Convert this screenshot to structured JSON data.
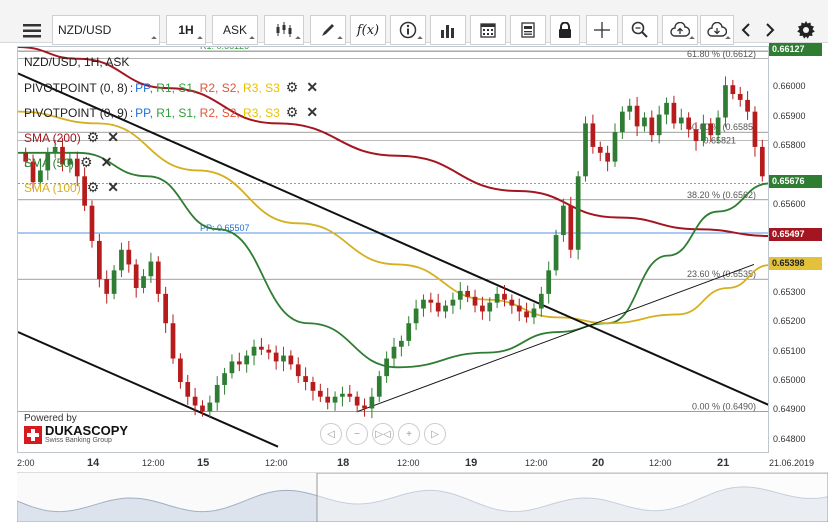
{
  "toolbar": {
    "menu_icon": "hamburger-icon",
    "symbol": "NZD/USD",
    "timeframe": "1H",
    "side": "ASK",
    "fx_label": "f(x)"
  },
  "chart_header": {
    "instrument": "NZD/USD, 1H, ASK"
  },
  "indicators": [
    {
      "name": "PIVOTPOINT (0, 8)",
      "levels": [
        "PP",
        "R1",
        "S1",
        "R2",
        "S2",
        "R3",
        "S3"
      ]
    },
    {
      "name": "PIVOTPOINT (0, 9)",
      "levels": [
        "PP",
        "R1",
        "S1",
        "R2",
        "S2",
        "R3",
        "S3"
      ]
    },
    {
      "name": "SMA (200)"
    },
    {
      "name": "SMA (50)"
    },
    {
      "name": "SMA (100)"
    }
  ],
  "sep": " : ",
  "annotations": {
    "r1": "R1: 0.66126",
    "pp": "PP: 0.65507",
    "fib_618": "61.80 % (0.6612)",
    "fib_50": "50.00 % (0.6585)",
    "fib_50b": "0.65821",
    "fib_382": "38.20 % (0.6562)",
    "fib_236": "23.60 % (0.6535)",
    "fib_0": "0.00 % (0.6490)"
  },
  "price_axis": {
    "ticks": [
      "0.66000",
      "0.65900",
      "0.65800",
      "0.65600",
      "0.65300",
      "0.65200",
      "0.65100",
      "0.65000",
      "0.64900",
      "0.64800"
    ],
    "labels": [
      {
        "value": "0.66127",
        "color": "#2e7d32"
      },
      {
        "value": "0.65676",
        "color": "#2e7d32"
      },
      {
        "value": "0.65497",
        "color": "#a31621"
      },
      {
        "value": "0.65398",
        "color": "#e2c23a"
      }
    ]
  },
  "time_axis": {
    "labels": [
      {
        "text": "2:00",
        "day": false
      },
      {
        "text": "14",
        "day": true
      },
      {
        "text": "12:00",
        "day": false
      },
      {
        "text": "15",
        "day": true
      },
      {
        "text": "12:00",
        "day": false
      },
      {
        "text": "18",
        "day": true
      },
      {
        "text": "12:00",
        "day": false
      },
      {
        "text": "19",
        "day": true
      },
      {
        "text": "12:00",
        "day": false
      },
      {
        "text": "20",
        "day": true
      },
      {
        "text": "12:00",
        "day": false
      },
      {
        "text": "21",
        "day": true
      },
      {
        "text": "21.06.2019",
        "day": false
      }
    ]
  },
  "branding": {
    "powered_by": "Powered by",
    "company": "DUKASCOPY",
    "tagline": "Swiss Banking Group"
  },
  "colors": {
    "sma200": "#a31621",
    "sma50": "#2e7d32",
    "sma100": "#d4b020",
    "up": "#2e7d32",
    "down": "#b71c1c",
    "pp": "#1e6fd9",
    "r1": "#2e9e3a",
    "s1": "#2e9e3a",
    "r2": "#e0553a",
    "s2": "#e0553a",
    "r3": "#e8c200",
    "s3": "#e8c200"
  }
}
